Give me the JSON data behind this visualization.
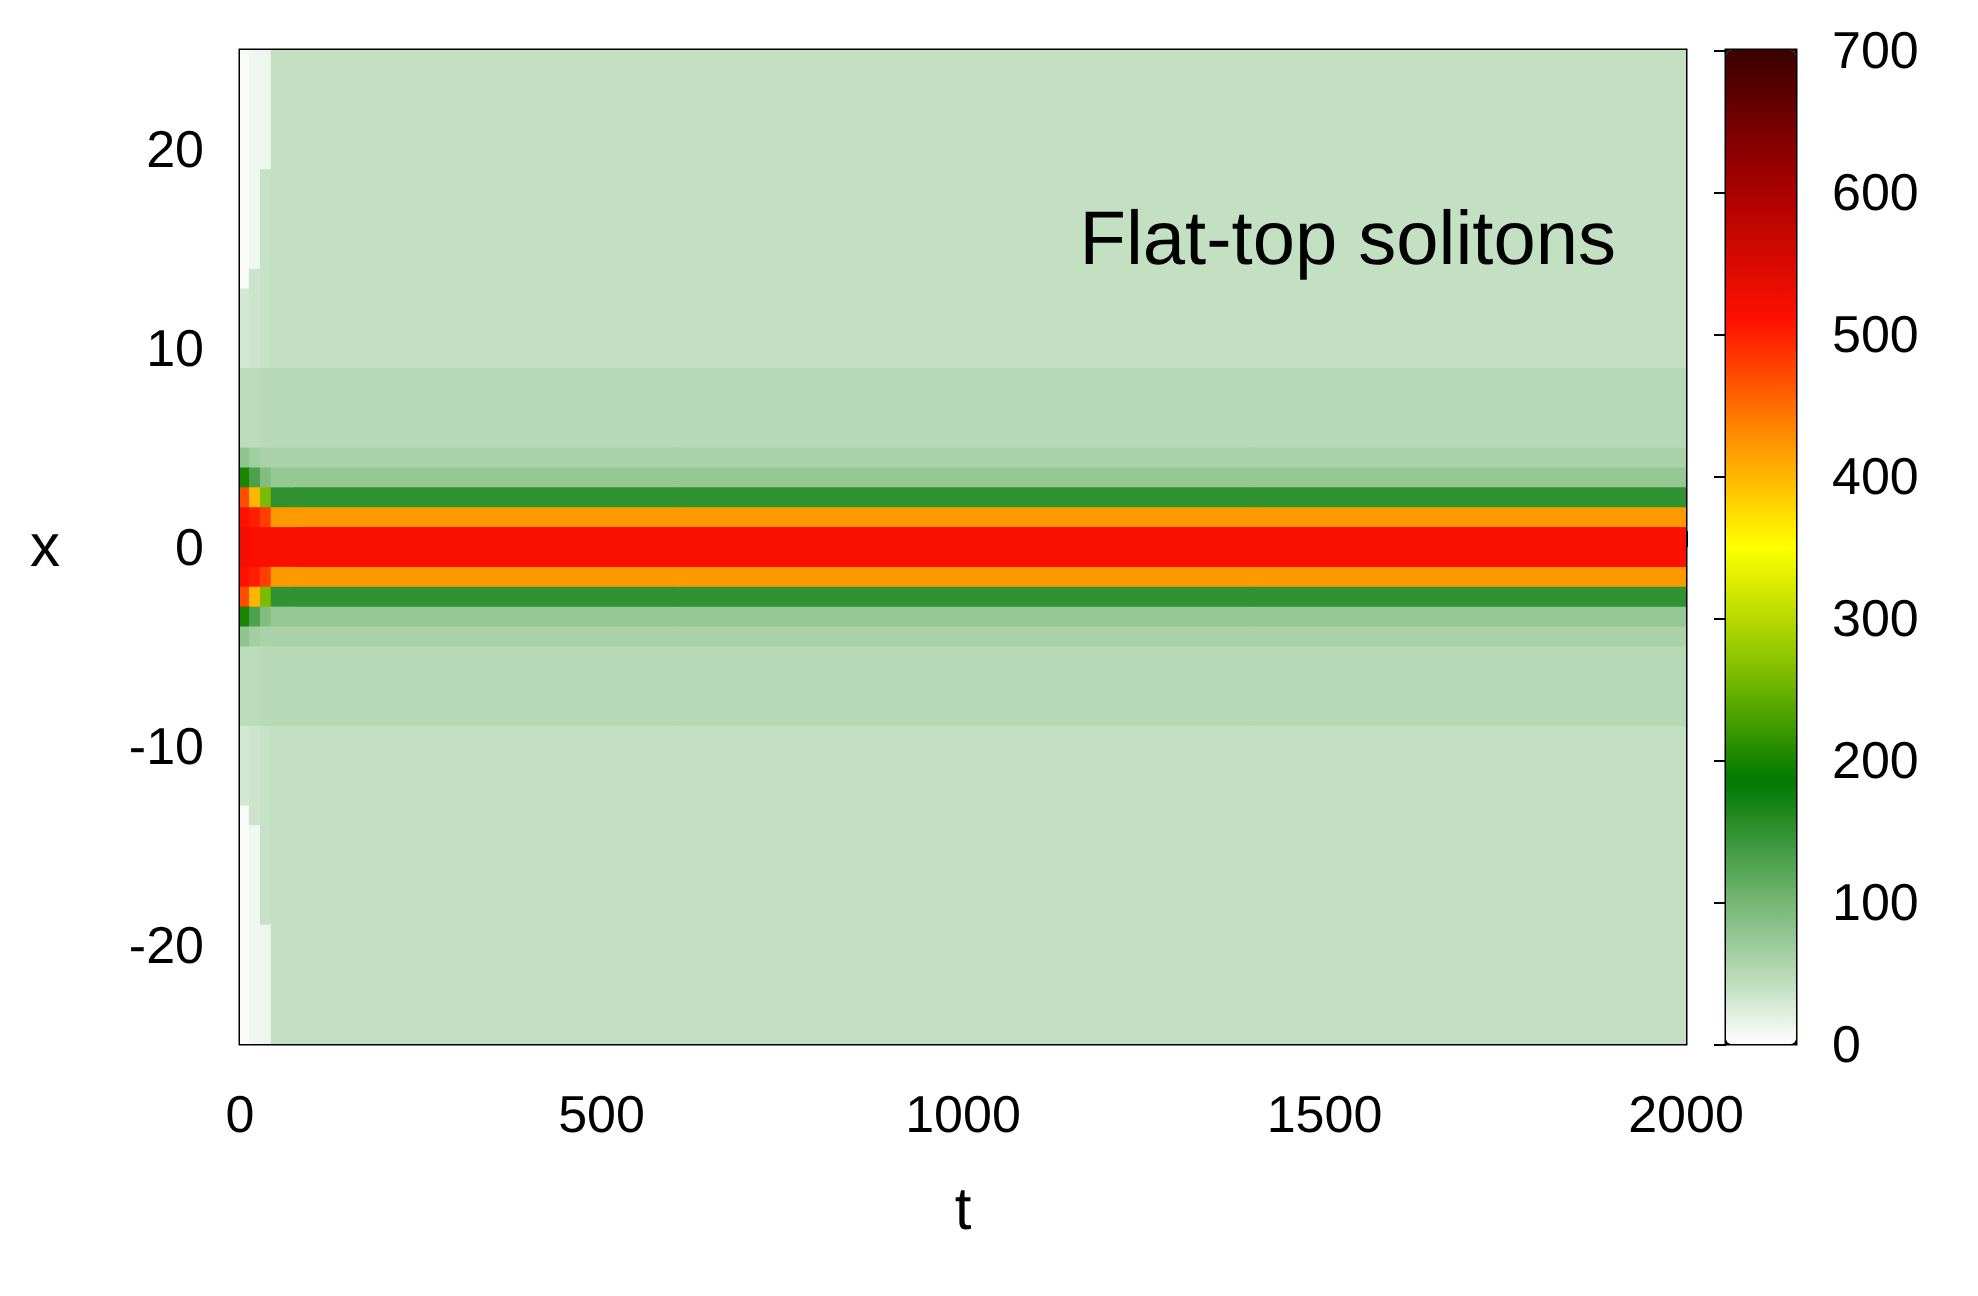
{
  "chart_data": {
    "type": "heatmap",
    "title": "Flat-top solitons",
    "xlabel": "t",
    "ylabel": "x",
    "x": [
      5,
      20,
      35,
      50,
      100,
      1100,
      1700
    ],
    "xlim": [
      0,
      2000
    ],
    "xticks": [
      0,
      500,
      1000,
      1500,
      2000
    ],
    "ylim": [
      -25,
      25
    ],
    "yticks": [
      -20,
      -10,
      0,
      10,
      20
    ],
    "clim": [
      0,
      700
    ],
    "cticks": [
      0,
      100,
      200,
      300,
      400,
      500,
      600,
      700
    ],
    "cells": [
      [
        5,
        10,
        12,
        40,
        40,
        40,
        40
      ],
      [
        5,
        10,
        12,
        40,
        40,
        40,
        40
      ],
      [
        5,
        10,
        12,
        40,
        40,
        40,
        40
      ],
      [
        5,
        10,
        12,
        40,
        40,
        40,
        40
      ],
      [
        5,
        10,
        12,
        40,
        40,
        40,
        40
      ],
      [
        5,
        10,
        12,
        40,
        40,
        40,
        40
      ],
      [
        5,
        10,
        38,
        40,
        40,
        40,
        40
      ],
      [
        5,
        10,
        38,
        40,
        40,
        40,
        40
      ],
      [
        5,
        10,
        38,
        40,
        40,
        40,
        40
      ],
      [
        5,
        10,
        38,
        40,
        40,
        40,
        40
      ],
      [
        5,
        10,
        38,
        40,
        40,
        40,
        40
      ],
      [
        5,
        35,
        38,
        40,
        40,
        40,
        40
      ],
      [
        30,
        35,
        38,
        40,
        40,
        40,
        40
      ],
      [
        30,
        35,
        38,
        40,
        40,
        40,
        40
      ],
      [
        30,
        35,
        38,
        40,
        40,
        40,
        40
      ],
      [
        30,
        35,
        38,
        40,
        40,
        40,
        40
      ],
      [
        45,
        45,
        48,
        50,
        50,
        50,
        50
      ],
      [
        45,
        45,
        48,
        50,
        50,
        50,
        50
      ],
      [
        45,
        45,
        48,
        50,
        50,
        50,
        50
      ],
      [
        45,
        45,
        48,
        50,
        50,
        50,
        50
      ],
      [
        80,
        65,
        60,
        60,
        60,
        60,
        60
      ],
      [
        200,
        130,
        90,
        75,
        75,
        75,
        75
      ],
      [
        470,
        400,
        260,
        150,
        150,
        150,
        150
      ],
      [
        510,
        500,
        480,
        420,
        420,
        420,
        420
      ],
      [
        520,
        515,
        515,
        515,
        515,
        515,
        515
      ],
      [
        520,
        515,
        515,
        515,
        515,
        515,
        515
      ],
      [
        510,
        500,
        480,
        420,
        420,
        420,
        420
      ],
      [
        470,
        400,
        260,
        150,
        150,
        150,
        150
      ],
      [
        200,
        130,
        90,
        75,
        75,
        75,
        75
      ],
      [
        80,
        65,
        60,
        60,
        60,
        60,
        60
      ],
      [
        45,
        45,
        48,
        50,
        50,
        50,
        50
      ],
      [
        45,
        45,
        48,
        50,
        50,
        50,
        50
      ],
      [
        45,
        45,
        48,
        50,
        50,
        50,
        50
      ],
      [
        45,
        45,
        48,
        50,
        50,
        50,
        50
      ],
      [
        30,
        35,
        38,
        40,
        40,
        40,
        40
      ],
      [
        30,
        35,
        38,
        40,
        40,
        40,
        40
      ],
      [
        30,
        35,
        38,
        40,
        40,
        40,
        40
      ],
      [
        30,
        35,
        38,
        40,
        40,
        40,
        40
      ],
      [
        5,
        35,
        38,
        40,
        40,
        40,
        40
      ],
      [
        5,
        10,
        38,
        40,
        40,
        40,
        40
      ],
      [
        5,
        10,
        38,
        40,
        40,
        40,
        40
      ],
      [
        5,
        10,
        38,
        40,
        40,
        40,
        40
      ],
      [
        5,
        10,
        38,
        40,
        40,
        40,
        40
      ],
      [
        5,
        10,
        38,
        40,
        40,
        40,
        40
      ],
      [
        5,
        10,
        12,
        40,
        40,
        40,
        40
      ],
      [
        5,
        10,
        12,
        40,
        40,
        40,
        40
      ],
      [
        5,
        10,
        12,
        40,
        40,
        40,
        40
      ],
      [
        5,
        10,
        12,
        40,
        40,
        40,
        40
      ],
      [
        5,
        10,
        12,
        40,
        40,
        40,
        40
      ],
      [
        5,
        10,
        12,
        40,
        40,
        40,
        40
      ]
    ]
  }
}
